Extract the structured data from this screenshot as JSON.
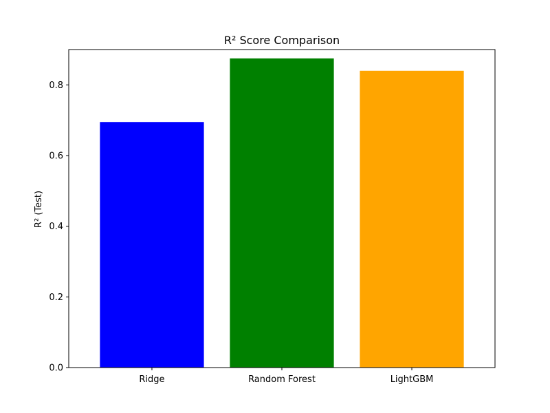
{
  "chart_data": {
    "type": "bar",
    "title": "R² Score Comparison",
    "xlabel": "",
    "ylabel": "R² (Test)",
    "categories": [
      "Ridge",
      "Random Forest",
      "LightGBM"
    ],
    "values": [
      0.695,
      0.875,
      0.84
    ],
    "colors": [
      "#0000ff",
      "#008000",
      "#ffa500"
    ],
    "ylim": [
      0,
      0.9
    ],
    "yticks": [
      0.0,
      0.2,
      0.4,
      0.6,
      0.8
    ],
    "ytick_labels": [
      "0.0",
      "0.2",
      "0.4",
      "0.6",
      "0.8"
    ],
    "grid": false,
    "legend": "none"
  }
}
